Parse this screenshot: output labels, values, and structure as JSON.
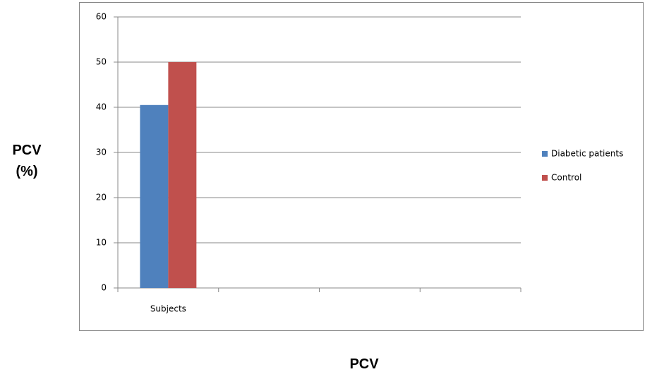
{
  "chart_data": {
    "type": "bar",
    "ylabel": "PCV (%)",
    "xlabel": "PCV",
    "categories": [
      "Subjects",
      null,
      null,
      null
    ],
    "series": [
      {
        "name": "Diabetic patients",
        "color": "#4f81bd",
        "values": [
          40.5,
          null,
          null,
          null
        ]
      },
      {
        "name": "Control",
        "color": "#c0504d",
        "values": [
          50,
          null,
          null,
          null
        ]
      }
    ],
    "ylim": [
      0,
      60
    ],
    "yticks": [
      0,
      10,
      20,
      30,
      40,
      50,
      60
    ],
    "grid": true,
    "legend": "right"
  }
}
